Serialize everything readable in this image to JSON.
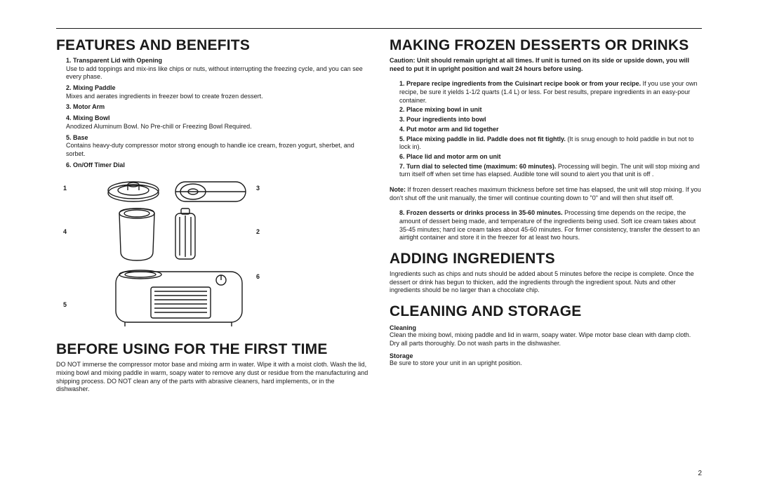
{
  "page_number": "2",
  "left": {
    "features_heading": "FEATURES AND BENEFITS",
    "features": [
      {
        "num": "1.",
        "label": "Transparent Lid with Opening",
        "desc": "Use to add toppings and mix-ins like chips or nuts, without interrupting the freezing cycle, and you can see every phase."
      },
      {
        "num": "2.",
        "label": "Mixing Paddle",
        "desc": "Mixes and aerates ingredients in freezer bowl to create frozen dessert."
      },
      {
        "num": "3.",
        "label": "Motor Arm",
        "desc": ""
      },
      {
        "num": "4.",
        "label": "Mixing Bowl",
        "desc": "Anodized Aluminum Bowl. No Pre-chill or Freezing Bowl Required."
      },
      {
        "num": "5.",
        "label": "Base",
        "desc": "Contains heavy-duty compressor motor strong enough to handle ice cream, frozen yogurt, sherbet, and sorbet."
      },
      {
        "num": "6.",
        "label": "On/Off Timer Dial",
        "desc": ""
      }
    ],
    "diagram_labels": {
      "l1": "1",
      "l2": "2",
      "l3": "3",
      "l4": "4",
      "l5": "5",
      "l6": "6"
    },
    "before_heading": "BEFORE USING FOR THE FIRST TIME",
    "before_text": "DO NOT immerse the compressor motor base and mixing arm in water. Wipe it with a moist cloth. Wash the lid, mixing bowl and mixing paddle in warm, soapy water to remove any dust or residue from the manufacturing and shipping process. DO NOT clean any of the parts with abrasive cleaners, hard implements, or in the dishwasher."
  },
  "right": {
    "making_heading": "MAKING FROZEN DESSERTS OR DRINKS",
    "caution": "Caution: Unit should remain upright at all times. If unit is turned on its side or upside down, you will need to put it in upright position and wait 24 hours before using.",
    "steps_a": [
      {
        "num": "1.",
        "bold": "Prepare recipe ingredients from the Cuisinart recipe book or from your recipe.",
        "rest": " If you use your own recipe, be sure it yields 1-1/2 quarts (1.4 L) or less. For best results, prepare ingredients in an easy-pour container."
      },
      {
        "num": "2.",
        "bold": "Place mixing bowl in unit",
        "rest": ""
      },
      {
        "num": "3.",
        "bold": "Pour ingredients into bowl",
        "rest": ""
      },
      {
        "num": "4.",
        "bold": "Put motor arm and lid together",
        "rest": ""
      },
      {
        "num": "5.",
        "bold": "Place mixing paddle in lid. Paddle does not fit tightly.",
        "rest": " (It is snug enough to hold paddle in but not to lock in)."
      },
      {
        "num": "6.",
        "bold": "Place lid and motor arm on unit",
        "rest": ""
      },
      {
        "num": "7.",
        "bold": "Turn dial to selected time (maximum: 60 minutes).",
        "rest": " Processing will begin. The unit will stop mixing and turn itself off when set time has elapsed. Audible tone will sound to alert you that unit is off ."
      }
    ],
    "note": "Note: If frozen dessert reaches maximum thickness before set time has elapsed, the unit will stop mixing. If you don't shut off the unit manually, the timer will continue counting down to \"0\" and will then shut itself off.",
    "steps_b": [
      {
        "num": "8.",
        "bold": "Frozen desserts or drinks process in 35-60 minutes.",
        "rest": " Processing time depends on the recipe, the amount of dessert being made, and temperature of the ingredients being used. Soft ice cream takes about 35-45 minutes; hard ice cream takes about 45-60 minutes. For firmer consistency, transfer the dessert to an airtight container and store it in the freezer for at least two hours."
      }
    ],
    "adding_heading": "ADDING INGREDIENTS",
    "adding_text": "Ingredients such as chips and nuts should be added about 5 minutes before the recipe is complete. Once the dessert or drink has begun to thicken, add the ingredients through the ingredient spout. Nuts and other ingredients should be no larger than a chocolate chip.",
    "cleaning_heading": "CLEANING AND STORAGE",
    "cleaning_label": "Cleaning",
    "cleaning_text": "Clean the mixing bowl, mixing paddle and lid in warm, soapy water. Wipe motor base clean with damp cloth. Dry all parts thoroughly. Do not wash parts in the dishwasher.",
    "storage_label": "Storage",
    "storage_text": "Be sure to store your unit in an upright position."
  }
}
